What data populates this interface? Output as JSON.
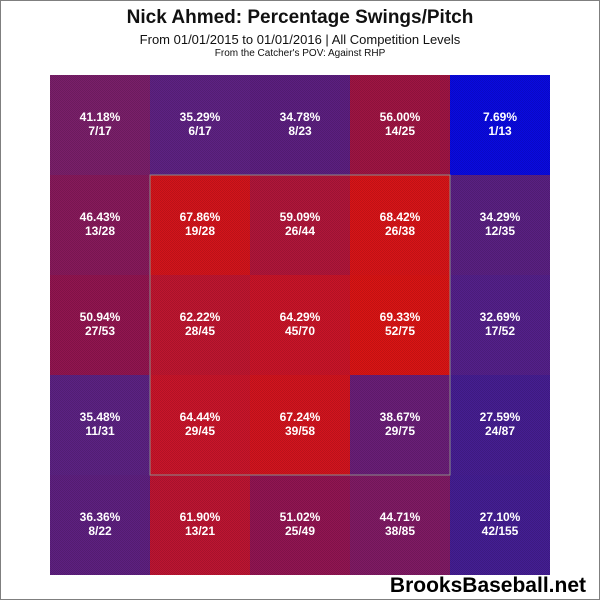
{
  "chart_data": {
    "type": "heatmap",
    "title": "Nick Ahmed: Percentage Swings/Pitch",
    "subtitle": "From 01/01/2015 to 01/01/2016 | All Competition Levels",
    "note": "From the Catcher's POV:   Against RHP",
    "rows": 5,
    "cols": 5,
    "strike_zone": "inner 3x3",
    "cells": [
      [
        {
          "pct": "41.18%",
          "count": "7/17",
          "value": 41.18,
          "color": "#7a1f6a"
        },
        {
          "pct": "35.29%",
          "count": "6/17",
          "value": 35.29,
          "color": "#5e2283"
        },
        {
          "pct": "34.78%",
          "count": "8/23",
          "value": 34.78,
          "color": "#5c1f80"
        },
        {
          "pct": "56.00%",
          "count": "14/25",
          "value": 56.0,
          "color": "#9f1543"
        },
        {
          "pct": "7.69%",
          "count": "1/13",
          "value": 7.69,
          "color": "#0a0ae0"
        }
      ],
      [
        {
          "pct": "46.43%",
          "count": "13/28",
          "value": 46.43,
          "color": "#87195b"
        },
        {
          "pct": "67.86%",
          "count": "19/28",
          "value": 67.86,
          "color": "#d4141b"
        },
        {
          "pct": "59.09%",
          "count": "26/44",
          "value": 59.09,
          "color": "#b0163a"
        },
        {
          "pct": "68.42%",
          "count": "26/38",
          "value": 68.42,
          "color": "#d81418"
        },
        {
          "pct": "34.29%",
          "count": "12/35",
          "value": 34.29,
          "color": "#5a2082"
        }
      ],
      [
        {
          "pct": "50.94%",
          "count": "27/53",
          "value": 50.94,
          "color": "#921550"
        },
        {
          "pct": "62.22%",
          "count": "28/45",
          "value": 62.22,
          "color": "#bf1630"
        },
        {
          "pct": "64.29%",
          "count": "45/70",
          "value": 64.29,
          "color": "#c91428"
        },
        {
          "pct": "69.33%",
          "count": "52/75",
          "value": 69.33,
          "color": "#db1414"
        },
        {
          "pct": "32.69%",
          "count": "17/52",
          "value": 32.69,
          "color": "#54208a"
        }
      ],
      [
        {
          "pct": "35.48%",
          "count": "11/31",
          "value": 35.48,
          "color": "#5c2283"
        },
        {
          "pct": "64.44%",
          "count": "29/45",
          "value": 64.44,
          "color": "#c9152a"
        },
        {
          "pct": "67.24%",
          "count": "39/58",
          "value": 67.24,
          "color": "#d3141e"
        },
        {
          "pct": "38.67%",
          "count": "29/75",
          "value": 38.67,
          "color": "#6a1e77"
        },
        {
          "pct": "27.59%",
          "count": "24/87",
          "value": 27.59,
          "color": "#461e92"
        }
      ],
      [
        {
          "pct": "36.36%",
          "count": "8/22",
          "value": 36.36,
          "color": "#5e2080"
        },
        {
          "pct": "61.90%",
          "count": "13/21",
          "value": 61.9,
          "color": "#bd1532"
        },
        {
          "pct": "51.02%",
          "count": "25/49",
          "value": 51.02,
          "color": "#921552"
        },
        {
          "pct": "44.71%",
          "count": "38/85",
          "value": 44.71,
          "color": "#801a64"
        },
        {
          "pct": "27.10%",
          "count": "42/155",
          "value": 27.1,
          "color": "#441e93"
        }
      ]
    ]
  },
  "watermark": "BrooksBaseball.net"
}
